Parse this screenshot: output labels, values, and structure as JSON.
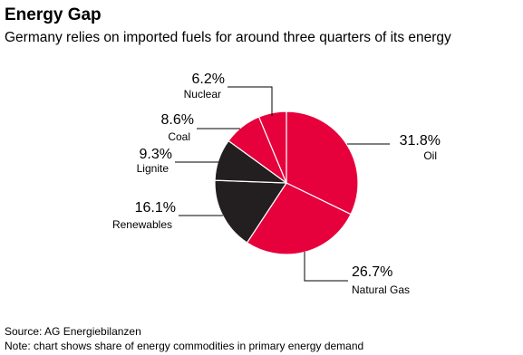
{
  "chart_data": {
    "type": "pie",
    "title": "Energy Gap",
    "subtitle": "Germany relies on imported fuels for around three quarters of its energy",
    "categories": [
      "Oil",
      "Natural Gas",
      "Renewables",
      "Lignite",
      "Coal",
      "Nuclear"
    ],
    "values": [
      31.8,
      26.7,
      16.1,
      9.3,
      8.6,
      6.2
    ],
    "value_labels": [
      "31.8%",
      "26.7%",
      "16.1%",
      "9.3%",
      "8.6%",
      "6.2%"
    ],
    "colors": [
      "#e6003c",
      "#e6003c",
      "#231f20",
      "#231f20",
      "#e6003c",
      "#e6003c"
    ],
    "source": "Source: AG Energiebilanzen",
    "note": "Note: chart shows share of energy commodities in primary energy demand"
  }
}
